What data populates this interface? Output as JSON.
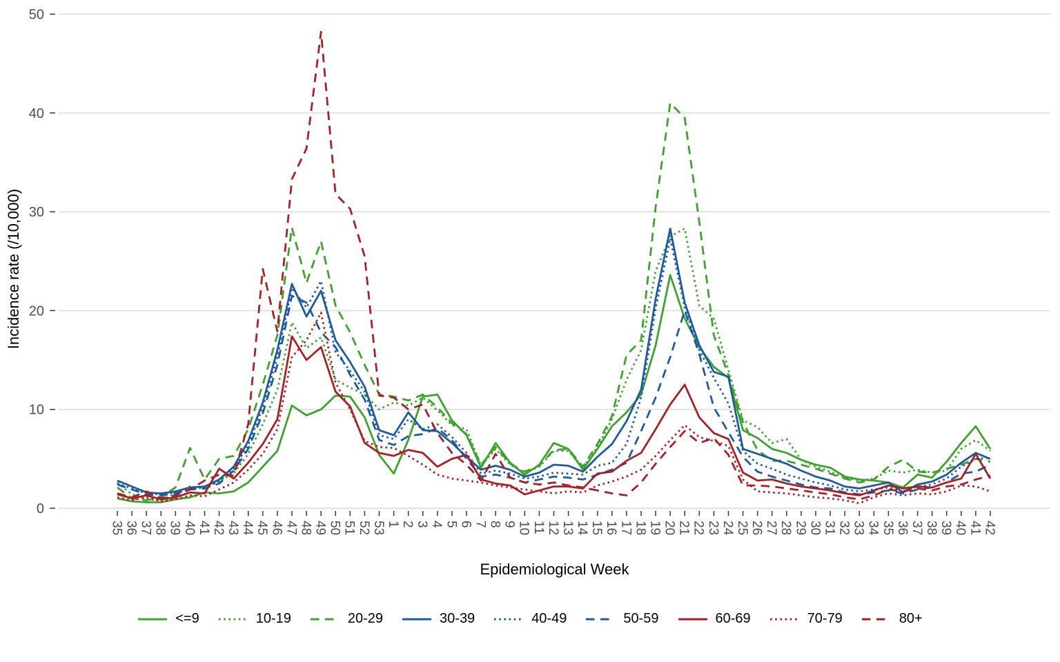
{
  "chart_data": {
    "type": "line",
    "title": "",
    "xlabel": "Epidemiological Week",
    "ylabel": "Incidence rate (/10,000)",
    "x_tick_labels": [
      "35",
      "36",
      "37",
      "38",
      "39",
      "40",
      "41",
      "42",
      "43",
      "44",
      "45",
      "46",
      "47",
      "48",
      "49",
      "50",
      "51",
      "52",
      "53",
      "1",
      "2",
      "3",
      "4",
      "5",
      "6",
      "7",
      "8",
      "9",
      "10",
      "11",
      "12",
      "13",
      "14",
      "15",
      "16",
      "17",
      "18",
      "19",
      "20",
      "21",
      "22",
      "23",
      "24",
      "25",
      "26",
      "27",
      "28",
      "29",
      "30",
      "31",
      "32",
      "33",
      "34",
      "35",
      "36",
      "37",
      "38",
      "39",
      "40",
      "41",
      "42"
    ],
    "y_ticks": [
      0,
      10,
      20,
      30,
      40,
      50
    ],
    "ylim": [
      0,
      50
    ],
    "grid": "horizontal-major-only",
    "legend_position": "bottom",
    "palette": {
      "green": "#3DA32C",
      "blue": "#1E5B9E",
      "red": "#A92024"
    },
    "axis_text_color": "#4d4d4d",
    "gridline_color": "#d9d9d9",
    "series": [
      {
        "name": "<=9",
        "color": "green",
        "linestyle": "solid",
        "values": [
          1.0,
          0.7,
          0.6,
          0.6,
          0.9,
          1.1,
          1.6,
          1.5,
          1.7,
          2.6,
          4.2,
          5.8,
          10.4,
          9.4,
          10.0,
          11.4,
          11.3,
          9.2,
          5.4,
          3.5,
          6.9,
          11.3,
          11.5,
          8.9,
          7.4,
          4.1,
          6.6,
          4.6,
          3.4,
          4.4,
          6.6,
          6.0,
          3.9,
          6.0,
          8.3,
          9.7,
          11.5,
          16.5,
          23.6,
          19.2,
          16.3,
          14.3,
          13.2,
          7.9,
          7.1,
          6.0,
          5.6,
          4.9,
          4.4,
          4.1,
          3.2,
          2.9,
          2.8,
          2.6,
          2.1,
          3.4,
          3.1,
          4.7,
          6.6,
          8.3,
          6.0
        ]
      },
      {
        "name": "10-19",
        "color": "green",
        "linestyle": "dotted",
        "values": [
          2.6,
          1.4,
          0.9,
          0.8,
          1.5,
          2.2,
          2.0,
          2.8,
          3.5,
          5.5,
          8.5,
          12.0,
          18.8,
          16.2,
          17.3,
          13.0,
          12.2,
          11.5,
          10.0,
          10.7,
          10.4,
          11.2,
          9.9,
          8.4,
          8.0,
          4.3,
          6.0,
          4.4,
          3.6,
          4.2,
          5.8,
          5.8,
          4.1,
          6.2,
          9.0,
          13.0,
          16.0,
          24.0,
          27.5,
          28.3,
          20.5,
          19.2,
          14.0,
          8.9,
          8.2,
          6.6,
          7.0,
          4.9,
          4.2,
          3.7,
          3.1,
          2.8,
          3.0,
          3.8,
          3.6,
          3.9,
          3.6,
          3.8,
          6.0,
          6.9,
          5.8
        ]
      },
      {
        "name": "20-29",
        "color": "green",
        "linestyle": "dashed",
        "values": [
          2.1,
          1.0,
          0.8,
          1.1,
          2.1,
          6.1,
          2.9,
          5.0,
          5.3,
          8.0,
          12.5,
          17.5,
          28.4,
          22.8,
          27.0,
          20.5,
          17.8,
          14.5,
          11.5,
          11.3,
          10.9,
          11.5,
          10.2,
          8.6,
          7.5,
          4.4,
          6.2,
          4.5,
          3.7,
          4.3,
          5.9,
          6.0,
          4.2,
          6.5,
          9.3,
          15.5,
          17.0,
          30.5,
          41.0,
          39.5,
          29.0,
          17.5,
          13.5,
          8.7,
          5.9,
          4.8,
          4.8,
          4.4,
          4.0,
          3.5,
          3.0,
          2.6,
          2.9,
          4.2,
          4.9,
          3.7,
          3.6,
          4.0,
          4.4,
          5.0,
          4.7
        ]
      },
      {
        "name": "30-39",
        "color": "blue",
        "linestyle": "solid",
        "values": [
          2.8,
          2.2,
          1.6,
          1.5,
          1.7,
          2.1,
          2.2,
          2.9,
          4.2,
          6.8,
          10.7,
          16.0,
          22.7,
          19.4,
          22.0,
          17.0,
          14.8,
          12.3,
          7.9,
          7.4,
          9.7,
          7.9,
          7.8,
          6.6,
          5.2,
          3.9,
          4.3,
          3.9,
          3.2,
          3.6,
          4.4,
          4.3,
          3.7,
          5.2,
          6.5,
          8.8,
          12.0,
          21.2,
          28.3,
          20.8,
          16.5,
          13.8,
          13.3,
          6.0,
          5.5,
          5.0,
          4.5,
          3.8,
          3.2,
          2.8,
          2.2,
          2.0,
          2.3,
          2.6,
          1.6,
          2.4,
          2.7,
          3.4,
          4.6,
          5.6,
          5.0
        ]
      },
      {
        "name": "40-49",
        "color": "blue",
        "linestyle": "dotted",
        "values": [
          2.5,
          2.0,
          1.5,
          1.4,
          1.6,
          2.0,
          2.1,
          2.7,
          4.0,
          6.4,
          10.2,
          15.3,
          22.3,
          20.3,
          23.0,
          15.8,
          13.9,
          11.8,
          7.4,
          7.0,
          9.0,
          8.0,
          8.5,
          7.2,
          5.6,
          3.5,
          3.8,
          3.5,
          3.0,
          3.2,
          3.6,
          3.5,
          3.4,
          4.3,
          4.6,
          6.5,
          11.2,
          20.2,
          27.3,
          20.3,
          16.0,
          13.2,
          10.6,
          5.8,
          4.5,
          4.0,
          3.4,
          3.0,
          2.6,
          2.3,
          1.9,
          1.7,
          1.9,
          2.1,
          1.7,
          2.2,
          2.4,
          3.0,
          4.2,
          5.0,
          5.1
        ]
      },
      {
        "name": "50-59",
        "color": "blue",
        "linestyle": "dashed",
        "values": [
          2.4,
          1.9,
          1.4,
          1.3,
          1.5,
          1.9,
          2.0,
          2.5,
          3.8,
          6.0,
          9.6,
          14.5,
          21.5,
          20.8,
          17.8,
          16.3,
          13.5,
          11.0,
          6.9,
          6.4,
          7.3,
          7.5,
          8.1,
          6.9,
          5.0,
          3.2,
          3.4,
          3.1,
          2.6,
          2.9,
          3.2,
          3.1,
          2.9,
          3.4,
          3.9,
          4.6,
          7.8,
          11.2,
          15.3,
          20.0,
          15.6,
          10.2,
          7.7,
          5.2,
          3.7,
          3.2,
          2.8,
          2.4,
          2.1,
          2.0,
          1.6,
          1.4,
          1.6,
          1.8,
          1.5,
          1.9,
          2.1,
          2.6,
          3.5,
          3.7,
          4.4
        ]
      },
      {
        "name": "60-69",
        "color": "red",
        "linestyle": "solid",
        "values": [
          1.4,
          1.0,
          1.3,
          0.9,
          1.1,
          1.6,
          1.5,
          4.0,
          3.0,
          4.6,
          6.5,
          9.0,
          17.4,
          15.0,
          16.3,
          11.8,
          10.3,
          6.6,
          5.6,
          5.3,
          5.9,
          5.6,
          4.2,
          5.0,
          5.4,
          2.9,
          2.5,
          2.3,
          1.4,
          1.8,
          2.2,
          2.2,
          2.0,
          3.5,
          3.7,
          4.8,
          5.6,
          8.0,
          10.5,
          12.5,
          9.2,
          7.6,
          7.0,
          3.6,
          2.8,
          2.9,
          2.5,
          2.2,
          2.0,
          1.8,
          1.5,
          1.3,
          1.8,
          2.3,
          2.0,
          2.2,
          2.1,
          2.6,
          3.0,
          5.5,
          3.0
        ]
      },
      {
        "name": "70-79",
        "color": "red",
        "linestyle": "dotted",
        "values": [
          1.1,
          0.8,
          1.1,
          0.7,
          0.9,
          1.3,
          1.2,
          1.9,
          2.6,
          3.9,
          5.5,
          8.0,
          15.3,
          17.0,
          19.8,
          12.7,
          10.0,
          6.8,
          6.2,
          6.1,
          5.3,
          4.4,
          3.4,
          3.0,
          2.8,
          2.6,
          2.3,
          2.1,
          1.9,
          1.7,
          1.5,
          1.7,
          1.6,
          2.3,
          2.7,
          3.2,
          3.9,
          5.3,
          6.9,
          8.4,
          7.2,
          6.8,
          6.3,
          2.9,
          1.7,
          1.6,
          1.5,
          1.3,
          1.1,
          1.0,
          0.8,
          0.5,
          1.1,
          1.5,
          1.3,
          1.5,
          1.4,
          1.7,
          2.3,
          2.2,
          1.7
        ]
      },
      {
        "name": "80+",
        "color": "red",
        "linestyle": "dashed",
        "values": [
          1.5,
          1.1,
          1.7,
          1.0,
          1.3,
          1.9,
          2.8,
          3.4,
          3.3,
          8.5,
          24.2,
          17.9,
          33.3,
          36.4,
          48.2,
          31.8,
          30.3,
          25.5,
          11.4,
          11.2,
          10.0,
          10.5,
          7.6,
          5.6,
          4.4,
          2.8,
          5.5,
          3.1,
          2.6,
          2.4,
          2.6,
          2.3,
          2.1,
          1.8,
          1.5,
          1.3,
          2.6,
          4.5,
          6.2,
          7.8,
          6.6,
          7.1,
          5.4,
          2.3,
          2.3,
          2.2,
          2.0,
          1.8,
          1.6,
          1.4,
          1.1,
          0.9,
          1.3,
          1.9,
          1.7,
          2.0,
          1.8,
          2.2,
          2.4,
          2.9,
          3.3
        ]
      }
    ]
  }
}
